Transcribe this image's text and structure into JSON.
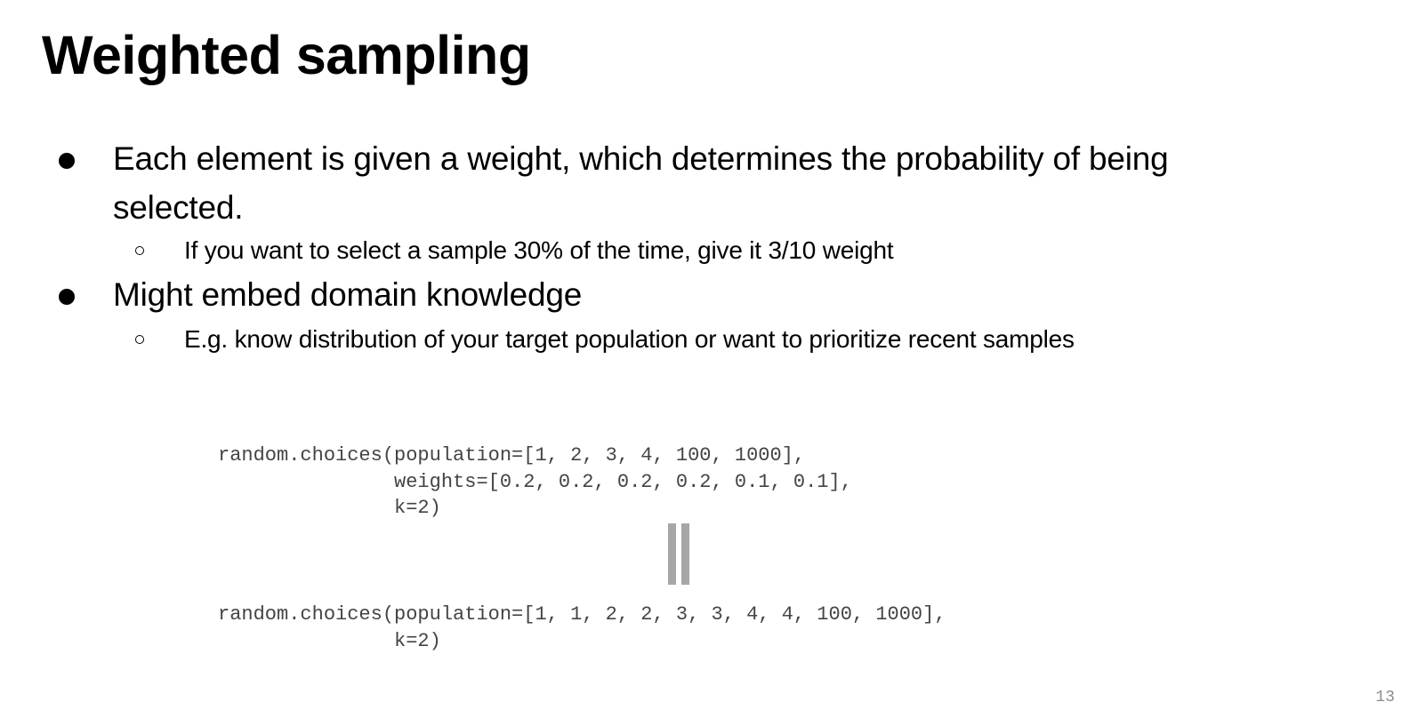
{
  "slide": {
    "title": "Weighted sampling",
    "page_number": "13"
  },
  "bullets": [
    {
      "text": "Each element is given a weight, which determines the probability of being selected.",
      "sub": "If you want to select a sample 30% of the time, give it 3/10 weight"
    },
    {
      "text": "Might embed domain knowledge",
      "sub": "E.g. know distribution of your target population or want to prioritize recent samples"
    }
  ],
  "code": {
    "snippet_1": "random.choices(population=[1, 2, 3, 4, 100, 1000],\n               weights=[0.2, 0.2, 0.2, 0.2, 0.1, 0.1],\n               k=2)",
    "separator_icon": "equals-sign-icon",
    "snippet_2": "random.choices(population=[1, 1, 2, 2, 3, 3, 4, 4, 100, 1000],\n               k=2)"
  },
  "colors": {
    "text": "#000000",
    "code_text": "#444444",
    "separator": "#a6a6a6",
    "page_number": "#8c8c8c"
  }
}
